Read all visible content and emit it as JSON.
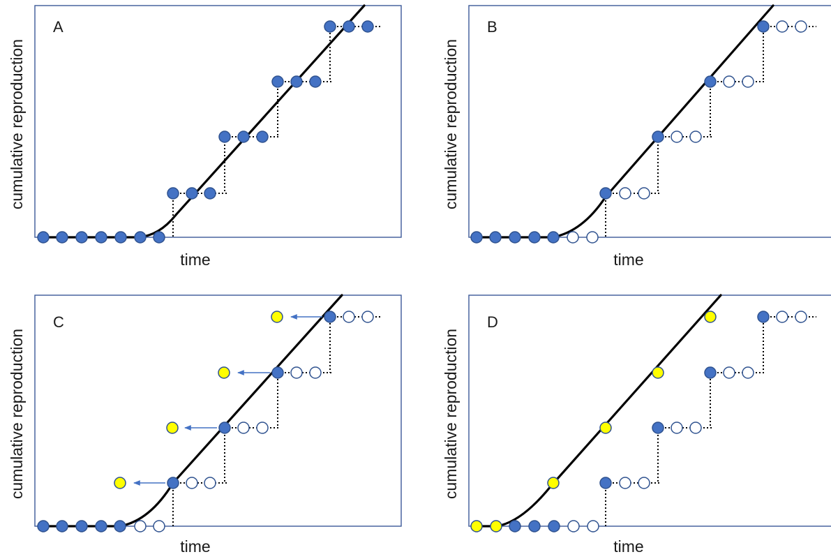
{
  "panels": [
    {
      "letter": "A",
      "ylabel": "cumulative reproduction",
      "xlabel": "time"
    },
    {
      "letter": "B",
      "ylabel": "cumulative reproduction",
      "xlabel": "time"
    },
    {
      "letter": "C",
      "ylabel": "cumulative reproduction",
      "xlabel": "time"
    },
    {
      "letter": "D",
      "ylabel": "cumulative reproduction",
      "xlabel": "time"
    }
  ],
  "colors": {
    "frame": "#3b5998",
    "filled_dot": "#4472c4",
    "dot_outline": "#2f528f",
    "open_dot_fill": "#ffffff",
    "yellow_dot": "#ffff00",
    "curve": "#000000",
    "arrow": "#4472c4"
  }
}
